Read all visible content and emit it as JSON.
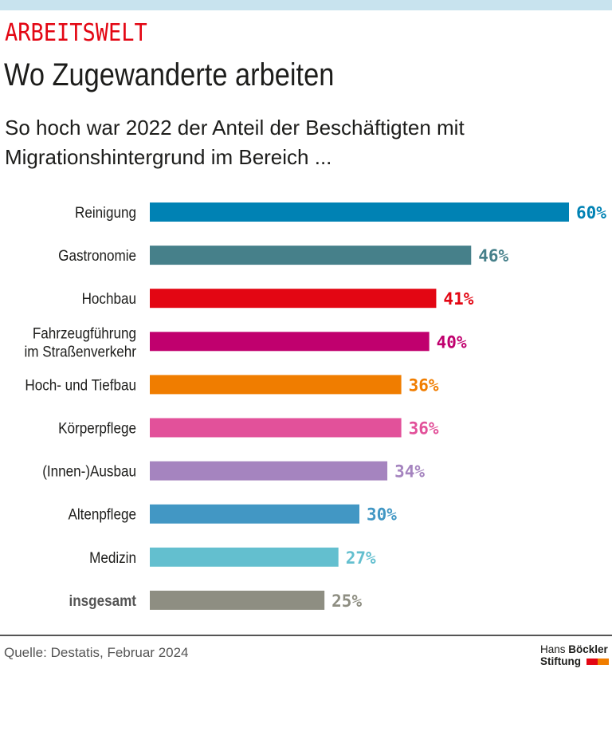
{
  "header": {
    "kicker": "ARBEITSWELT",
    "title": "Wo Zugewanderte arbeiten",
    "subtitle": "So hoch war 2022 der Anteil der Beschäftigten mit Migrationshintergrund im Bereich ..."
  },
  "chart_data": {
    "type": "bar",
    "orientation": "horizontal",
    "categories": [
      "Reinigung",
      "Gastronomie",
      "Hochbau",
      "Fahrzeugführung im Straßenverkehr",
      "Hoch- und Tiefbau",
      "Körperpflege",
      "(Innen-)Ausbau",
      "Altenpflege",
      "Medizin",
      "insgesamt"
    ],
    "values": [
      60,
      46,
      41,
      40,
      36,
      36,
      34,
      30,
      27,
      25
    ],
    "value_labels": [
      "60%",
      "46%",
      "41%",
      "40%",
      "36%",
      "36%",
      "34%",
      "30%",
      "27%",
      "25%"
    ],
    "colors": [
      "#0082b4",
      "#46808a",
      "#e30613",
      "#c0006e",
      "#f07d00",
      "#e2519a",
      "#a584bf",
      "#4297c4",
      "#63bfcf",
      "#8e8e82"
    ],
    "unit": "%",
    "xlim": [
      0,
      60
    ],
    "grid": false
  },
  "footer": {
    "source": "Quelle: Destatis, Februar 2024",
    "logo_line1_a": "Hans",
    "logo_line1_b": "Böckler",
    "logo_line2": "Stiftung"
  }
}
